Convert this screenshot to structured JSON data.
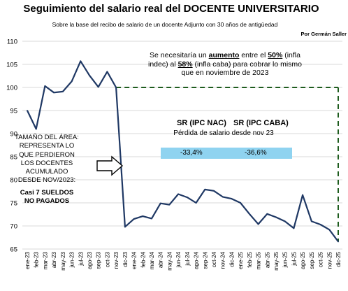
{
  "title": "Seguimiento del salario real del DOCENTE UNIVERSITARIO",
  "subtitle": "Sobre la base del recibo de salario de un docente Adjunto con 30 años de antigüedad",
  "author": "Por Germán Saller",
  "top_note": {
    "p1": "Se necesitaría un ",
    "p2": "aumento",
    "p3": " entre el ",
    "p4": "50%",
    "p5": " (infla indec) al ",
    "p6": "58%",
    "p7": " (infla caba) para cobrar lo mismo que en noviembre de 2023"
  },
  "sr_nac_label": "SR (IPC NAC)",
  "sr_caba_label": "SR (IPC CABA)",
  "loss_label": "Pérdida de salario desde nov  23",
  "loss_nac": "-33,4%",
  "loss_caba": "-36,6%",
  "area_note": {
    "lines": [
      "TAMAÑO  DEL ÁREA:",
      "REPRESENTA LO",
      "QUE PERDIERON",
      "LOS DOCENTES",
      "ACUMULADO",
      "DESDE NOV/2023:"
    ],
    "strong1": "Casi 7 SUELDOS",
    "strong2": "NO PAGADOS"
  },
  "colors": {
    "line": "#1f3864",
    "dashed": "#1e5c1e",
    "bar": "#8fd3f0",
    "grid": "#d9d9d9"
  },
  "chart_data": {
    "type": "line",
    "ylim": [
      65,
      110
    ],
    "yticks": [
      65,
      70,
      75,
      80,
      85,
      90,
      95,
      100,
      105,
      110
    ],
    "grid": true,
    "categories": [
      "ene-23",
      "feb-23",
      "mar-23",
      "abr-23",
      "may-23",
      "jun-23",
      "jul-23",
      "ago-23",
      "sep-23",
      "oct-23",
      "nov-23",
      "dic-23",
      "ene-24",
      "feb-24",
      "mar-24",
      "abr-24",
      "may-24",
      "jun-24",
      "jul-24",
      "ago-24",
      "sep-24",
      "oct-24",
      "nov-24",
      "dic-24",
      "ene-25",
      "feb-25",
      "mar-25",
      "abr-25",
      "may-25",
      "jun-25",
      "jul-25",
      "ago-25",
      "sep-25",
      "oct-25",
      "nov-25",
      "dic-25"
    ],
    "series": [
      {
        "values": [
          95,
          91,
          100.3,
          98.9,
          99.1,
          101.3,
          105.7,
          102.6,
          100.1,
          103.4,
          100,
          69.8,
          71.5,
          72.1,
          71.6,
          74.9,
          74.6,
          76.9,
          76.2,
          75,
          77.9,
          77.6,
          76.3,
          75.9,
          75,
          72.6,
          70.4,
          72.6,
          71.9,
          71,
          69.5,
          76.7,
          71,
          70.3,
          69.2,
          66.6
        ]
      }
    ],
    "reference_line": {
      "value": 100,
      "from": "nov-23",
      "to": "dic-25",
      "style": "dashed"
    }
  }
}
